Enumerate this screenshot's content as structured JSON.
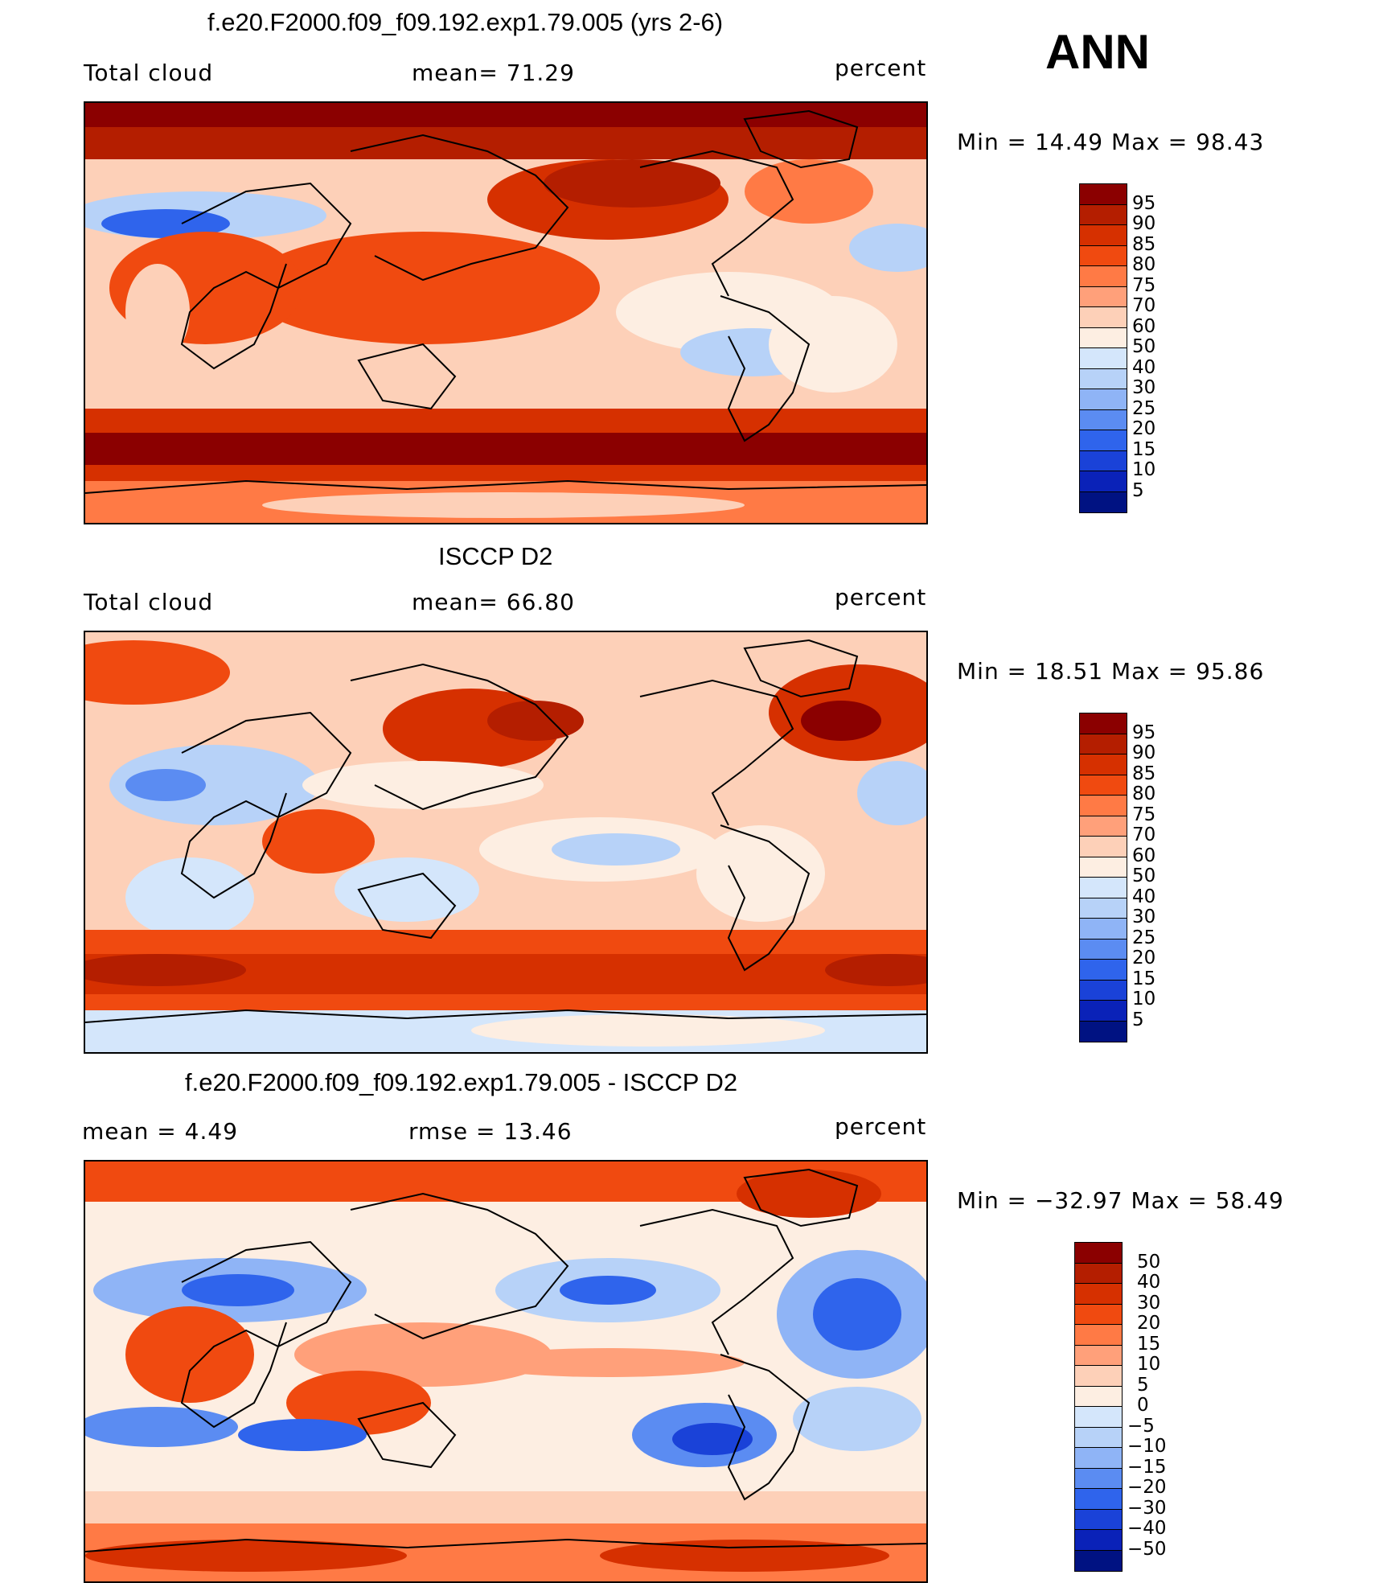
{
  "season": "ANN",
  "panels": [
    {
      "id": "model",
      "title": "f.e20.F2000.f09_f09.192.exp1.79.005 (yrs 2-6)",
      "left_label": "Total cloud",
      "center_label": "mean=   71.29",
      "units": "percent",
      "minmax": "Min =   14.49  Max =   98.43",
      "colorbar": {
        "labels": [
          "95",
          "90",
          "85",
          "80",
          "75",
          "70",
          "60",
          "50",
          "40",
          "30",
          "25",
          "20",
          "15",
          "10",
          "5"
        ],
        "colors": [
          "#8b0000",
          "#b41e00",
          "#d63000",
          "#f04a10",
          "#ff7a45",
          "#ffa07a",
          "#fdd0b8",
          "#fdeee2",
          "#d4e6fb",
          "#b7d2f8",
          "#8fb4f6",
          "#5b8cf2",
          "#2f64ec",
          "#1a42d8",
          "#0a22b8",
          "#001282"
        ]
      }
    },
    {
      "id": "obs",
      "title": "ISCCP D2",
      "left_label": "Total cloud",
      "center_label": "mean=   66.80",
      "units": "percent",
      "minmax": "Min =   18.51  Max =   95.86",
      "colorbar": {
        "labels": [
          "95",
          "90",
          "85",
          "80",
          "75",
          "70",
          "60",
          "50",
          "40",
          "30",
          "25",
          "20",
          "15",
          "10",
          "5"
        ],
        "colors": [
          "#8b0000",
          "#b41e00",
          "#d63000",
          "#f04a10",
          "#ff7a45",
          "#ffa07a",
          "#fdd0b8",
          "#fdeee2",
          "#d4e6fb",
          "#b7d2f8",
          "#8fb4f6",
          "#5b8cf2",
          "#2f64ec",
          "#1a42d8",
          "#0a22b8",
          "#001282"
        ]
      }
    },
    {
      "id": "diff",
      "title": "f.e20.F2000.f09_f09.192.exp1.79.005 - ISCCP D2",
      "left_label": "mean =    4.49",
      "center_label": "rmse =   13.46",
      "units": "percent",
      "minmax": "Min = −32.97  Max =   58.49",
      "colorbar": {
        "labels": [
          "50",
          "40",
          "30",
          "20",
          "15",
          "10",
          "5",
          "0",
          "−5",
          "−10",
          "−15",
          "−20",
          "−30",
          "−40",
          "−50"
        ],
        "colors": [
          "#8b0000",
          "#b41e00",
          "#d63000",
          "#f04a10",
          "#ff7a45",
          "#ffa07a",
          "#fdd0b8",
          "#fdeee2",
          "#d4e6fb",
          "#b7d2f8",
          "#8fb4f6",
          "#5b8cf2",
          "#2f64ec",
          "#1a42d8",
          "#0a22b8",
          "#001282"
        ]
      }
    }
  ]
}
